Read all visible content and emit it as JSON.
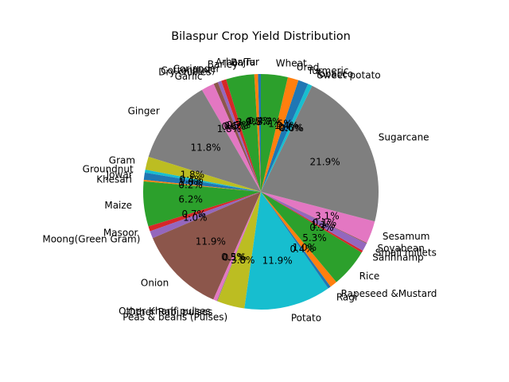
{
  "chart_data": {
    "type": "pie",
    "title": "Bilaspur Crop Yield Distribution",
    "start_angle_deg": 90,
    "direction": "counterclockwise",
    "label_format": "percent_one_decimal",
    "slices": [
      {
        "label": "Arhar/Tur",
        "value": 0.4,
        "color": "#1f77b4"
      },
      {
        "label": "Bajra",
        "value": 0.5,
        "color": "#ff7f0e"
      },
      {
        "label": "Barley",
        "value": 3.9,
        "color": "#2ca02c"
      },
      {
        "label": "Coriander",
        "value": 0.7,
        "color": "#d62728"
      },
      {
        "label": "Cotton(lint)",
        "value": 0.5,
        "color": "#9467bd"
      },
      {
        "label": "Dry chillies",
        "value": 0.6,
        "color": "#8c564b"
      },
      {
        "label": "Garlic",
        "value": 1.8,
        "color": "#e377c2"
      },
      {
        "label": "Ginger",
        "value": 11.9,
        "color": "#7f7f7f"
      },
      {
        "label": "Gram",
        "value": 1.8,
        "color": "#bcbd22"
      },
      {
        "label": "Groundnut",
        "value": 0.4,
        "color": "#17becf"
      },
      {
        "label": "Jowar",
        "value": 1.0,
        "color": "#1f77b4"
      },
      {
        "label": "Khesari",
        "value": 0.2,
        "color": "#ff7f0e"
      },
      {
        "label": "Maize",
        "value": 6.2,
        "color": "#2ca02c"
      },
      {
        "label": "Masoor",
        "value": 0.7,
        "color": "#d62728"
      },
      {
        "label": "Moong(Green Gram)",
        "value": 1.0,
        "color": "#9467bd"
      },
      {
        "label": "Onion",
        "value": 12.0,
        "color": "#8c564b"
      },
      {
        "label": "Other Kharif pulses",
        "value": 0.5,
        "color": "#e377c2"
      },
      {
        "label": "Other Rabi pulses",
        "value": 0.1,
        "color": "#7f7f7f"
      },
      {
        "label": "Peas & beans (Pulses)",
        "value": 3.8,
        "color": "#bcbd22"
      },
      {
        "label": "Potato",
        "value": 12.0,
        "color": "#17becf"
      },
      {
        "label": "Ragi",
        "value": 0.4,
        "color": "#1f77b4"
      },
      {
        "label": "Rapeseed &Mustard",
        "value": 1.0,
        "color": "#ff7f0e"
      },
      {
        "label": "Rice",
        "value": 5.3,
        "color": "#2ca02c"
      },
      {
        "label": "Sannhamp",
        "value": 0.3,
        "color": "#d62728"
      },
      {
        "label": "Small millets",
        "value": 1.1,
        "color": "#9467bd"
      },
      {
        "label": "Soyabean",
        "value": 0.1,
        "color": "#8c564b"
      },
      {
        "label": "Sesamum",
        "value": 3.1,
        "color": "#e377c2"
      },
      {
        "label": "Sugarcane",
        "value": 22.0,
        "color": "#7f7f7f"
      },
      {
        "label": "Sweet potato",
        "value": 0.0,
        "color": "#bcbd22"
      },
      {
        "label": "Tobacco",
        "value": 0.6,
        "color": "#17becf"
      },
      {
        "label": "Turmeric",
        "value": 1.4,
        "color": "#1f77b4"
      },
      {
        "label": "Urad",
        "value": 1.5,
        "color": "#ff7f0e"
      },
      {
        "label": "Wheat",
        "value": 3.7,
        "color": "#2ca02c"
      }
    ]
  }
}
